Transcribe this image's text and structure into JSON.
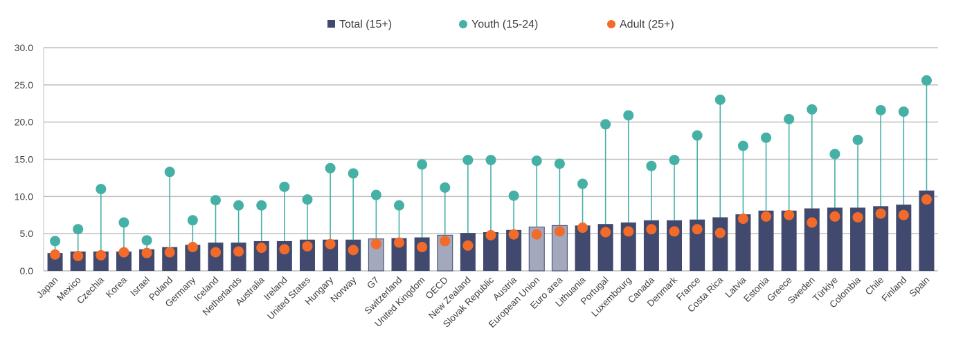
{
  "chart_data": {
    "type": "bar",
    "title": "",
    "xlabel": "",
    "ylabel": "",
    "ylim": [
      0,
      30
    ],
    "yticks": [
      "0.0",
      "5.0",
      "10.0",
      "15.0",
      "20.0",
      "25.0",
      "30.0"
    ],
    "grid": true,
    "legend_position": "top",
    "categories": [
      "Japan",
      "Mexico",
      "Czechia",
      "Korea",
      "Israel",
      "Poland",
      "Germany",
      "Iceland",
      "Netherlands",
      "Australia",
      "Ireland",
      "United States",
      "Hungary",
      "Norway",
      "G7",
      "Switzerland",
      "United Kingdom",
      "OECD",
      "New Zealand",
      "Slovak Republic",
      "Austria",
      "European Union",
      "Euro area",
      "Lithuania",
      "Portugal",
      "Luxembourg",
      "Canada",
      "Denmark",
      "France",
      "Costa Rica",
      "Latvia",
      "Estonia",
      "Greece",
      "Sweden",
      "Türkiye",
      "Colombia",
      "Chile",
      "Finland",
      "Spain"
    ],
    "highlighted_categories": [
      "G7",
      "OECD",
      "European Union",
      "Euro area"
    ],
    "series": [
      {
        "name": "Total (15+)",
        "kind": "bar",
        "color": "#414a6e",
        "highlight_color": "#a4a8bc",
        "values": [
          2.4,
          2.6,
          2.6,
          2.6,
          2.9,
          3.2,
          3.5,
          3.8,
          3.8,
          4.0,
          4.0,
          4.2,
          4.2,
          4.2,
          4.3,
          4.4,
          4.5,
          4.8,
          5.1,
          5.2,
          5.5,
          5.9,
          6.1,
          6.1,
          6.3,
          6.5,
          6.8,
          6.8,
          6.9,
          7.2,
          7.6,
          8.1,
          8.1,
          8.4,
          8.5,
          8.5,
          8.7,
          8.9,
          10.8
        ]
      },
      {
        "name": "Youth (15-24)",
        "kind": "lollipop",
        "color": "#45b0a5",
        "values": [
          4.0,
          5.6,
          11.0,
          6.5,
          4.1,
          13.3,
          6.8,
          9.5,
          8.8,
          8.8,
          11.3,
          9.6,
          13.8,
          13.1,
          10.2,
          8.8,
          14.3,
          11.2,
          14.9,
          14.9,
          10.1,
          14.8,
          14.4,
          11.7,
          19.7,
          20.9,
          14.1,
          14.9,
          18.2,
          23.0,
          16.8,
          17.9,
          20.4,
          21.7,
          15.7,
          17.6,
          21.6,
          21.4,
          25.6
        ]
      },
      {
        "name": "Adult (25+)",
        "kind": "dot",
        "color": "#f26b2a",
        "values": [
          2.2,
          2.0,
          2.1,
          2.5,
          2.4,
          2.5,
          3.2,
          2.5,
          2.6,
          3.1,
          2.9,
          3.3,
          3.6,
          2.8,
          3.6,
          3.8,
          3.2,
          4.0,
          3.4,
          4.8,
          4.9,
          4.9,
          5.3,
          5.8,
          5.2,
          5.3,
          5.6,
          5.3,
          5.6,
          5.1,
          7.0,
          7.3,
          7.5,
          6.5,
          7.3,
          7.2,
          7.7,
          7.5,
          9.6
        ]
      }
    ]
  }
}
